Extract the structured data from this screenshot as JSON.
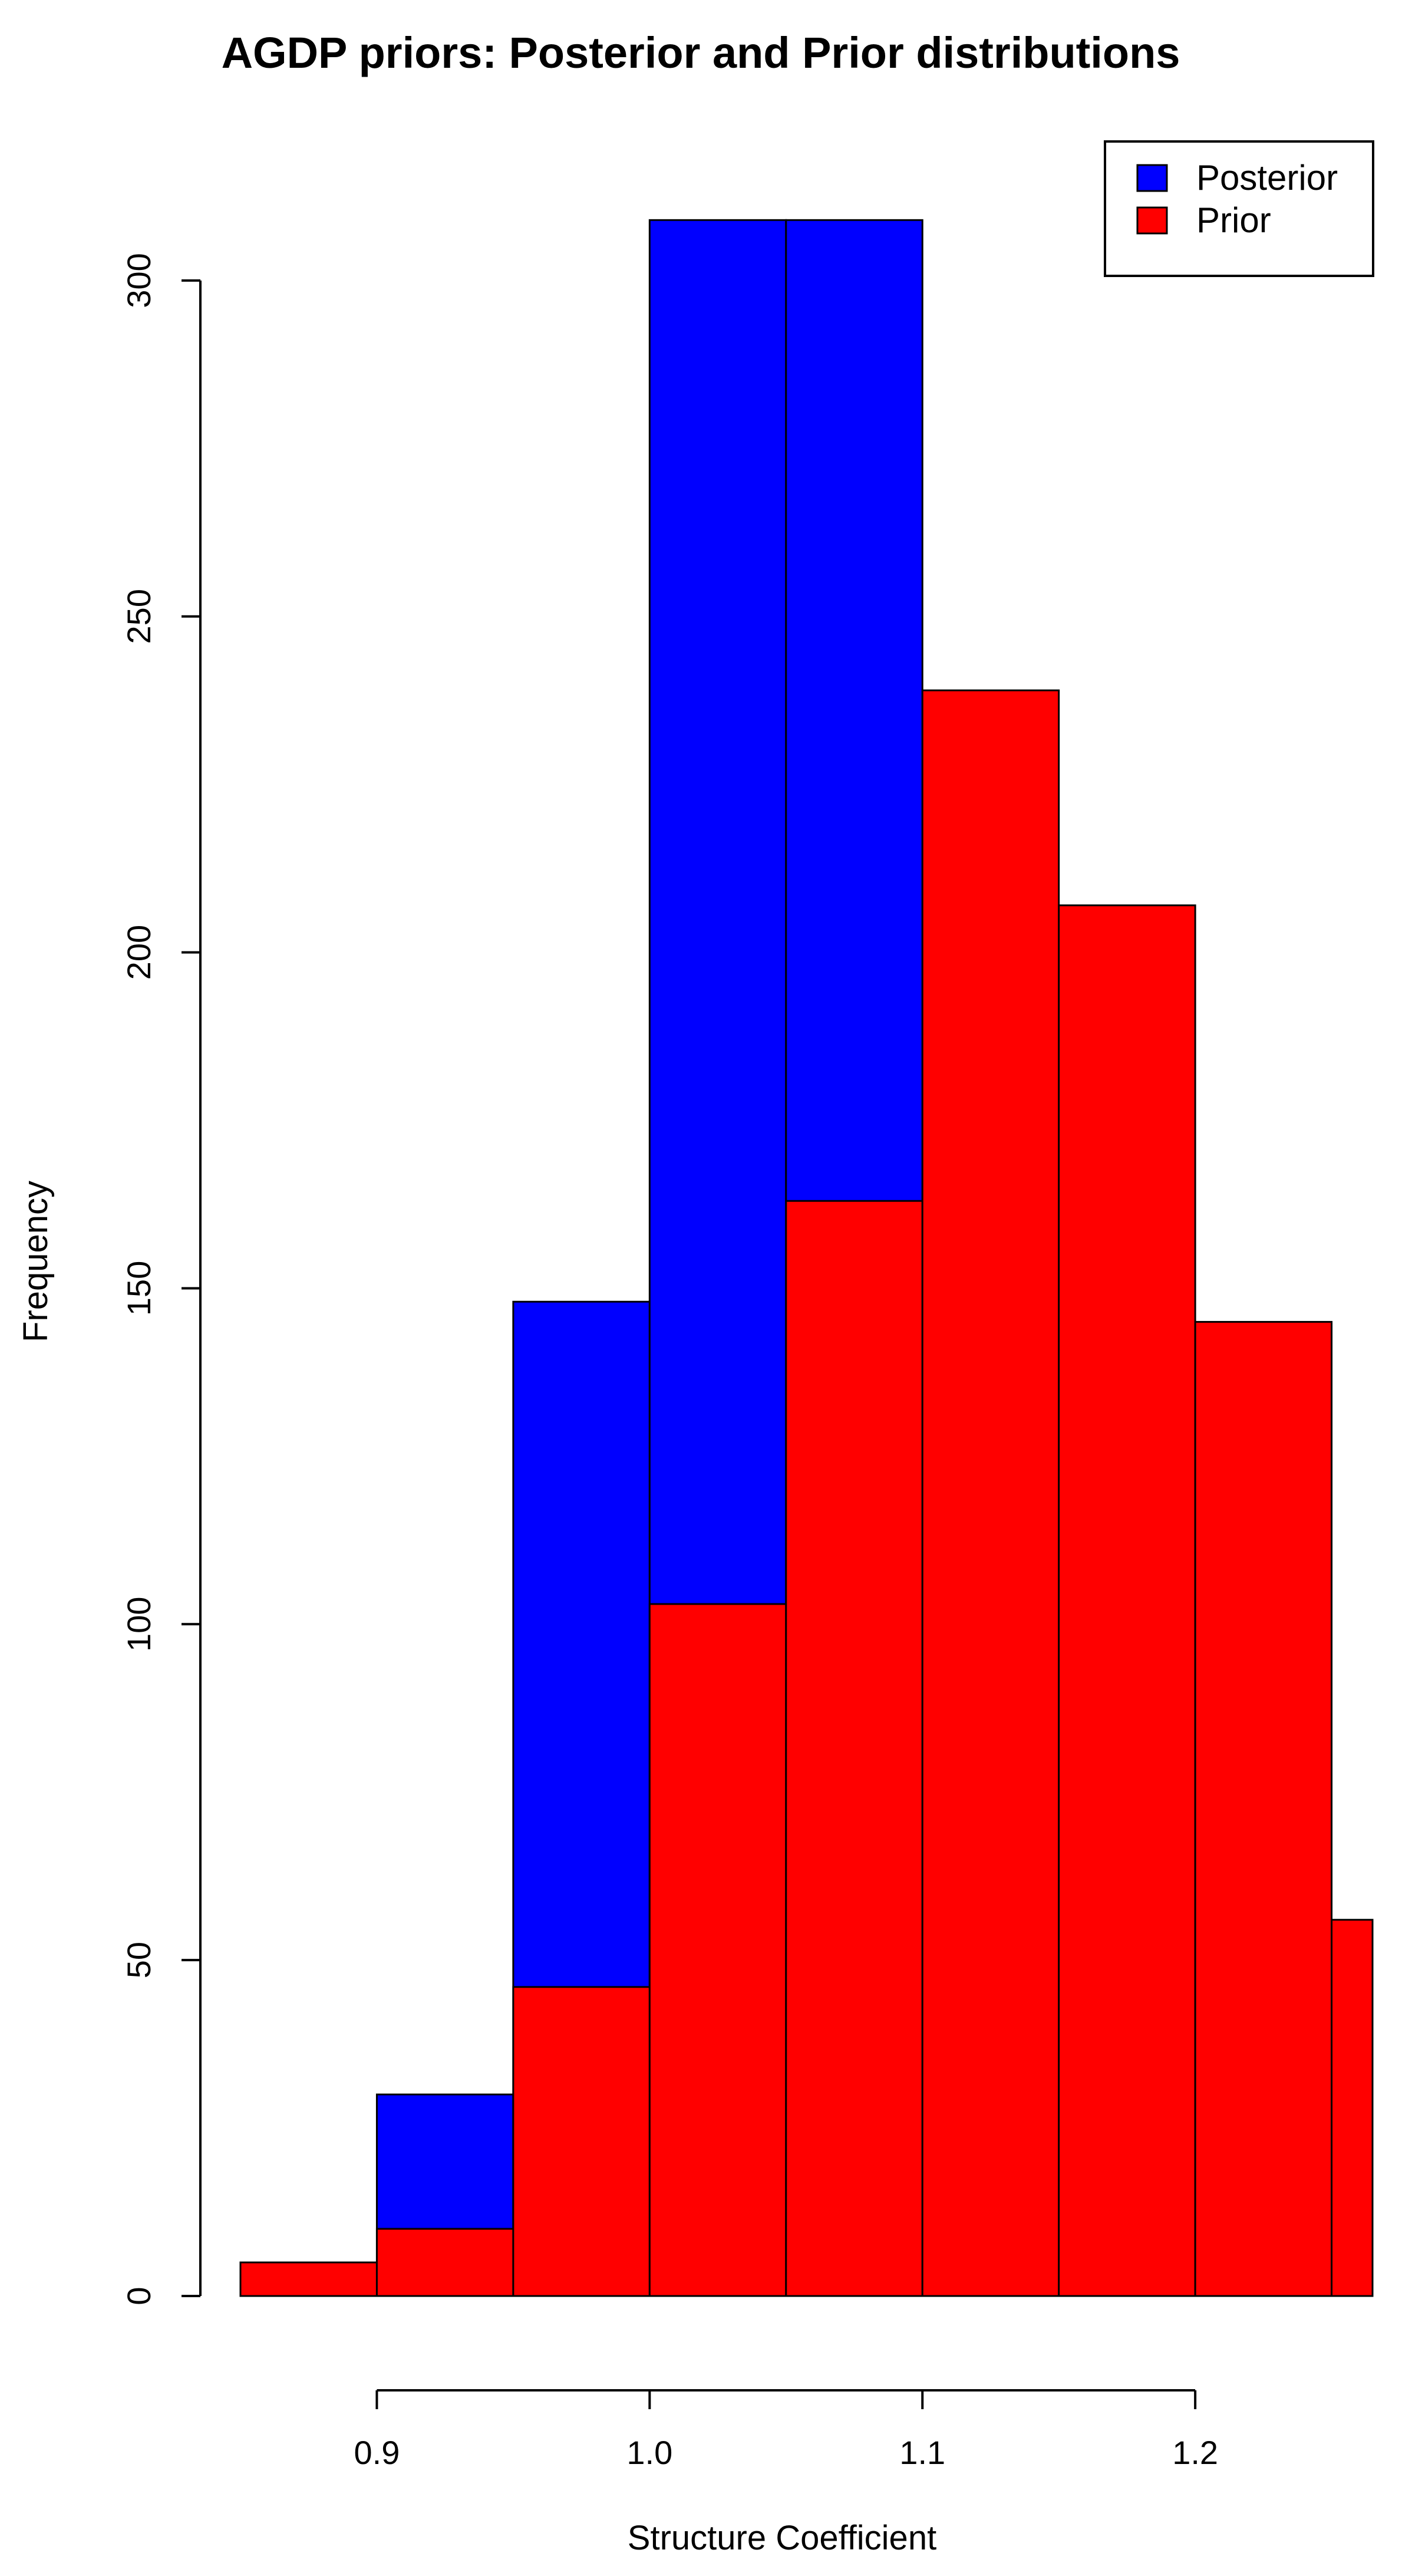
{
  "chart_data": {
    "type": "bar",
    "title": "AGDP priors: Posterior and Prior distributions",
    "xlabel": "Structure Coefficient",
    "ylabel": "Frequency",
    "xlim": [
      0.85,
      1.265
    ],
    "ylim": [
      0,
      300
    ],
    "x_ticks": [
      0.9,
      1.0,
      1.1,
      1.2
    ],
    "x_tick_labels": [
      "0.9",
      "1.0",
      "1.1",
      "1.2"
    ],
    "x_axis_range": [
      0.9,
      1.2
    ],
    "y_ticks": [
      0,
      50,
      100,
      150,
      200,
      250,
      300
    ],
    "y_tick_labels": [
      "0",
      "50",
      "100",
      "150",
      "200",
      "250",
      "300"
    ],
    "legend": {
      "position": "top-right",
      "entries": [
        {
          "name": "Posterior",
          "color": "#0000ff"
        },
        {
          "name": "Prior",
          "color": "#ff0000"
        }
      ]
    },
    "series": [
      {
        "name": "Posterior",
        "color": "#0000ff",
        "bins": [
          {
            "x0": 0.9,
            "x1": 0.95,
            "value": 30
          },
          {
            "x0": 0.95,
            "x1": 1.0,
            "value": 148
          },
          {
            "x0": 1.0,
            "x1": 1.05,
            "value": 309
          },
          {
            "x0": 1.05,
            "x1": 1.1,
            "value": 309
          }
        ]
      },
      {
        "name": "Prior",
        "color": "#ff0000",
        "bins": [
          {
            "x0": 0.85,
            "x1": 0.9,
            "value": 5
          },
          {
            "x0": 0.9,
            "x1": 0.95,
            "value": 10
          },
          {
            "x0": 0.95,
            "x1": 1.0,
            "value": 46
          },
          {
            "x0": 1.0,
            "x1": 1.05,
            "value": 103
          },
          {
            "x0": 1.05,
            "x1": 1.1,
            "value": 163
          },
          {
            "x0": 1.1,
            "x1": 1.15,
            "value": 239
          },
          {
            "x0": 1.15,
            "x1": 1.2,
            "value": 207
          },
          {
            "x0": 1.2,
            "x1": 1.25,
            "value": 145
          },
          {
            "x0": 1.25,
            "x1": 1.3,
            "value": 56
          }
        ]
      }
    ]
  }
}
